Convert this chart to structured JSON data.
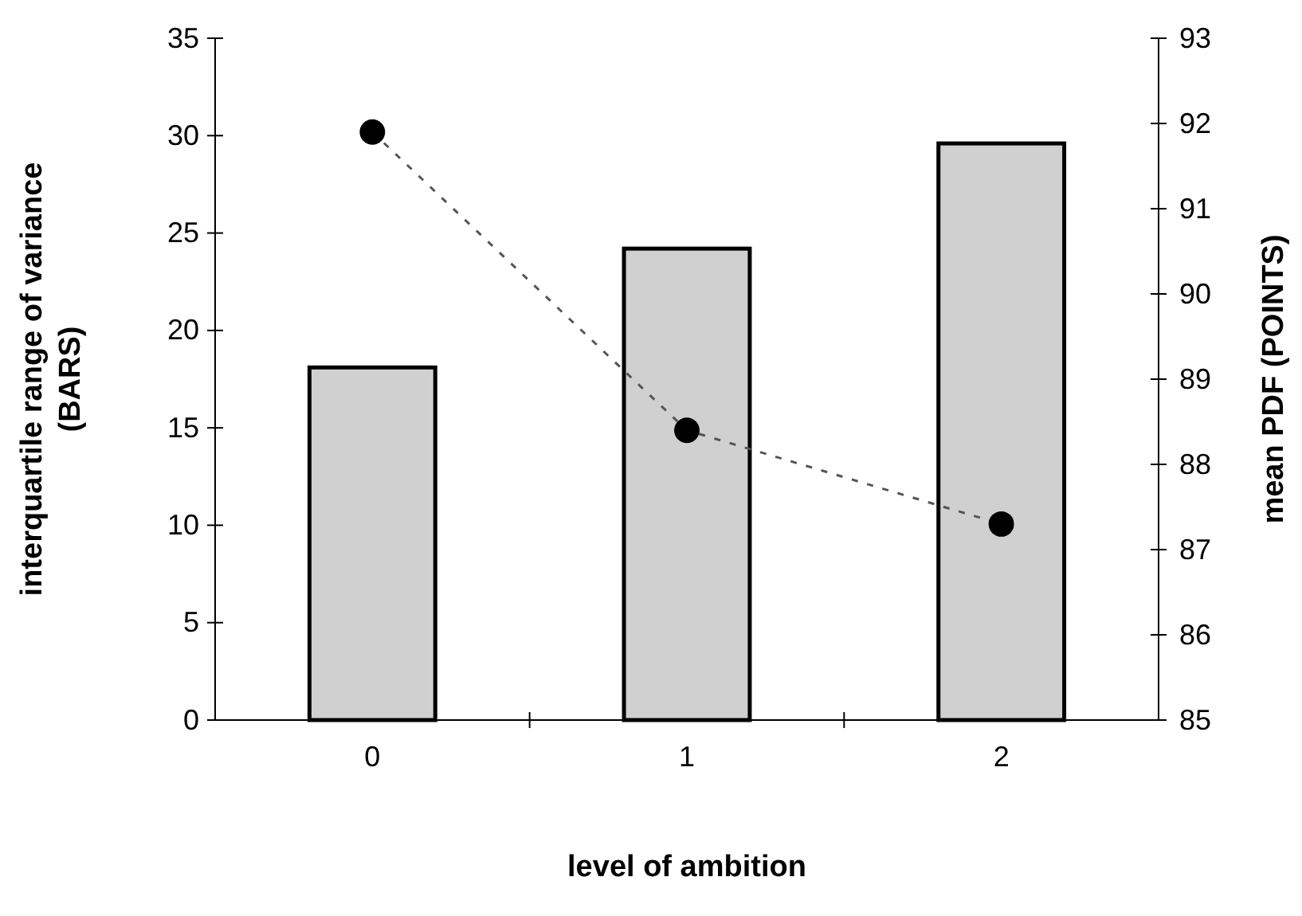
{
  "chart_data": {
    "type": "bar",
    "xlabel": "level of ambition",
    "ylabel": "interquartile range of variance\n(BARS)",
    "y2label": "mean PDF (POINTS)",
    "categories": [
      "0",
      "1",
      "2"
    ],
    "series": [
      {
        "color": "#d0d0d0",
        "values": [
          18.1,
          24.2,
          29.6
        ]
      },
      {
        "type": "line",
        "axis": "y2",
        "color": "#000000",
        "values": [
          91.9,
          88.4,
          87.3
        ],
        "marker": "circle",
        "line_style": "dashed"
      }
    ],
    "ylim": [
      0,
      35
    ],
    "yticks": [
      0,
      5,
      10,
      15,
      20,
      25,
      30,
      35
    ],
    "y2lim": [
      85,
      93
    ],
    "y2ticks": [
      85,
      86,
      87,
      88,
      89,
      90,
      91,
      92,
      93
    ],
    "grid": false
  }
}
